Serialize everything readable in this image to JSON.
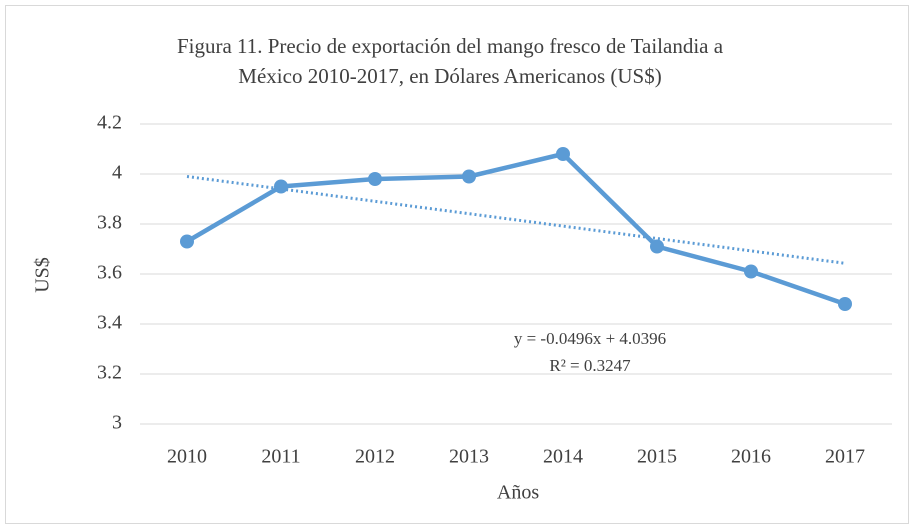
{
  "chart_data": {
    "type": "line",
    "title": [
      "Figura 11. Precio de exportación del mango fresco de Tailandia a",
      "México 2010-2017, en Dólares Americanos (US$)"
    ],
    "x_label": "Años",
    "y_label": "US$",
    "categories": [
      "2010",
      "2011",
      "2012",
      "2013",
      "2014",
      "2015",
      "2016",
      "2017"
    ],
    "values": [
      3.73,
      3.95,
      3.98,
      3.99,
      4.08,
      3.71,
      3.61,
      3.48
    ],
    "color": "#5b9bd5",
    "trendline": {
      "values": [
        3.99,
        3.9404,
        3.8908,
        3.8412,
        3.7916,
        3.742,
        3.6924,
        3.6428
      ],
      "color": "#5b9bd5",
      "equation": "y = -0.0496x + 4.0396",
      "r2": "R² = 0.3247"
    },
    "ylim": [
      3,
      4.2
    ],
    "yticks": [
      {
        "value": 3,
        "label": "3"
      },
      {
        "value": 3.2,
        "label": "3.2"
      },
      {
        "value": 3.4,
        "label": "3.4"
      },
      {
        "value": 3.6,
        "label": "3.6"
      },
      {
        "value": 3.8,
        "label": "3.8"
      },
      {
        "value": 4,
        "label": "4"
      },
      {
        "value": 4.2,
        "label": "4.2"
      }
    ],
    "grid": true
  }
}
